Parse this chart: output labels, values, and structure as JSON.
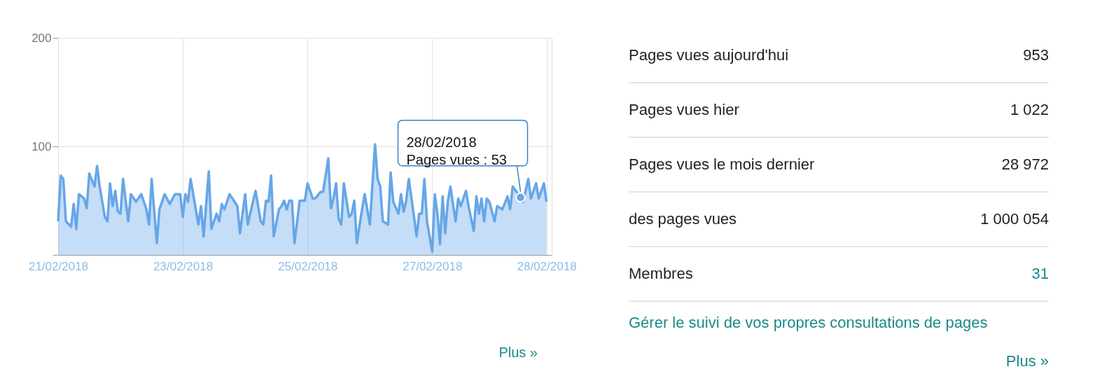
{
  "chart_data": {
    "type": "area",
    "x": [
      "2018-02-21T00:00",
      "2018-02-21T01:00",
      "2018-02-21T02:00",
      "2018-02-21T03:00",
      "2018-02-21T05:00",
      "2018-02-21T06:00",
      "2018-02-21T07:00",
      "2018-02-21T08:00",
      "2018-02-21T10:00",
      "2018-02-21T11:00",
      "2018-02-21T12:00",
      "2018-02-21T14:00",
      "2018-02-21T15:00",
      "2018-02-21T16:00",
      "2018-02-21T18:00",
      "2018-02-21T19:00",
      "2018-02-21T20:00",
      "2018-02-21T21:00",
      "2018-02-21T22:00",
      "2018-02-21T23:00",
      "2018-02-22T00:00",
      "2018-02-22T01:00",
      "2018-02-22T03:00",
      "2018-02-22T04:00",
      "2018-02-22T06:00",
      "2018-02-22T08:00",
      "2018-02-22T10:00",
      "2018-02-22T11:00",
      "2018-02-22T12:00",
      "2018-02-22T14:00",
      "2018-02-22T15:00",
      "2018-02-22T17:00",
      "2018-02-22T19:00",
      "2018-02-22T21:00",
      "2018-02-22T23:00",
      "2018-02-23T00:00",
      "2018-02-23T01:00",
      "2018-02-23T02:00",
      "2018-02-23T03:00",
      "2018-02-23T04:00",
      "2018-02-23T06:00",
      "2018-02-23T07:00",
      "2018-02-23T08:00",
      "2018-02-23T10:00",
      "2018-02-23T11:00",
      "2018-02-23T13:00",
      "2018-02-23T14:00",
      "2018-02-23T15:00",
      "2018-02-23T16:00",
      "2018-02-23T18:00",
      "2018-02-23T21:00",
      "2018-02-23T22:00",
      "2018-02-24T00:00",
      "2018-02-24T01:00",
      "2018-02-24T03:00",
      "2018-02-24T04:00",
      "2018-02-24T06:00",
      "2018-02-24T07:00",
      "2018-02-24T08:00",
      "2018-02-24T09:00",
      "2018-02-24T10:00",
      "2018-02-24T11:00",
      "2018-02-24T13:00",
      "2018-02-24T14:00",
      "2018-02-24T15:00",
      "2018-02-24T16:00",
      "2018-02-24T17:00",
      "2018-02-24T18:00",
      "2018-02-24T19:00",
      "2018-02-24T21:00",
      "2018-02-24T23:00",
      "2018-02-25T00:00",
      "2018-02-25T02:00",
      "2018-02-25T03:00",
      "2018-02-25T05:00",
      "2018-02-25T06:00",
      "2018-02-25T08:00",
      "2018-02-25T09:00",
      "2018-02-25T10:00",
      "2018-02-25T11:00",
      "2018-02-25T12:00",
      "2018-02-25T13:00",
      "2018-02-25T14:00",
      "2018-02-25T16:00",
      "2018-02-25T17:00",
      "2018-02-25T18:00",
      "2018-02-25T19:00",
      "2018-02-25T21:00",
      "2018-02-25T22:00",
      "2018-02-26T00:00",
      "2018-02-26T02:00",
      "2018-02-26T03:00",
      "2018-02-26T04:00",
      "2018-02-26T05:00",
      "2018-02-26T07:00",
      "2018-02-26T08:00",
      "2018-02-26T09:00",
      "2018-02-26T11:00",
      "2018-02-26T12:00",
      "2018-02-26T13:00",
      "2018-02-26T14:00",
      "2018-02-26T15:00",
      "2018-02-26T17:00",
      "2018-02-26T18:00",
      "2018-02-26T19:00",
      "2018-02-26T20:00",
      "2018-02-26T21:00",
      "2018-02-26T22:00",
      "2018-02-27T00:00",
      "2018-02-27T01:00",
      "2018-02-27T02:00",
      "2018-02-27T03:00",
      "2018-02-27T04:00",
      "2018-02-27T05:00",
      "2018-02-27T06:00",
      "2018-02-27T07:00",
      "2018-02-27T09:00",
      "2018-02-27T10:00",
      "2018-02-27T11:00",
      "2018-02-27T13:00",
      "2018-02-27T14:00",
      "2018-02-27T16:00",
      "2018-02-27T17:00",
      "2018-02-27T18:00",
      "2018-02-27T19:00",
      "2018-02-27T20:00",
      "2018-02-27T21:00",
      "2018-02-27T22:00",
      "2018-02-28T00:00",
      "2018-02-28T01:00",
      "2018-02-28T03:00",
      "2018-02-28T05:00",
      "2018-02-28T06:00",
      "2018-02-28T07:00",
      "2018-02-28T10:00",
      "2018-02-28T11:00",
      "2018-02-28T13:00",
      "2018-02-28T14:00",
      "2018-02-28T16:00",
      "2018-02-28T17:00",
      "2018-02-28T19:00",
      "2018-02-28T20:00"
    ],
    "series": [
      {
        "color": "#66a6e8",
        "values": [
          31,
          73,
          70,
          31,
          26,
          47,
          24,
          56,
          52,
          43,
          75,
          63,
          82,
          63,
          35,
          31,
          66,
          45,
          59,
          40,
          38,
          70,
          31,
          56,
          49,
          56,
          42,
          28,
          70,
          11,
          42,
          56,
          47,
          56,
          56,
          35,
          56,
          49,
          70,
          56,
          28,
          45,
          17,
          77,
          24,
          38,
          31,
          47,
          42,
          56,
          45,
          20,
          56,
          28,
          49,
          59,
          31,
          28,
          50,
          49,
          73,
          17,
          42,
          45,
          50,
          42,
          50,
          50,
          11,
          50,
          50,
          66,
          52,
          52,
          58,
          58,
          89,
          43,
          52,
          66,
          33,
          28,
          66,
          35,
          38,
          50,
          11,
          42,
          56,
          28,
          102,
          70,
          63,
          31,
          28,
          76,
          49,
          38,
          56,
          40,
          50,
          70,
          35,
          17,
          38,
          38,
          70,
          31,
          3,
          56,
          38,
          10,
          54,
          20,
          49,
          63,
          31,
          52,
          45,
          59,
          45,
          22,
          54,
          38,
          52,
          31,
          52,
          49,
          31,
          45,
          42,
          54,
          42,
          63,
          53,
          49,
          70,
          52,
          66,
          52,
          66,
          49
        ]
      }
    ],
    "xlim": [
      "2018-02-21T00:00",
      "2018-02-28T22:00"
    ],
    "xticks": [
      {
        "value": "2018-02-21T00:00",
        "label": "21/02/2018"
      },
      {
        "value": "2018-02-23T00:00",
        "label": "23/02/2018"
      },
      {
        "value": "2018-02-25T00:00",
        "label": "25/02/2018"
      },
      {
        "value": "2018-02-27T00:00",
        "label": "27/02/2018"
      },
      {
        "value": "2018-02-28T20:00",
        "label": "28/02/2018"
      }
    ],
    "ylim": [
      0,
      200
    ],
    "yticks": [
      {
        "value": 0,
        "label": null
      },
      100,
      200
    ],
    "grid": true,
    "annotations": [
      {
        "text": "28/02/2018\nPages vues : 53",
        "x": "2018-02-28T10:00",
        "y": 53
      },
      "Plus »",
      "Pages vues aujourd'hui",
      "953",
      "Pages vues hier",
      "1 022",
      "Pages vues le mois dernier",
      "28 972",
      "des pages vues",
      "1 000 054",
      "Membres",
      "31",
      "Gérer le suivi de vos propres consultations de pages",
      "Plus »"
    ]
  }
}
